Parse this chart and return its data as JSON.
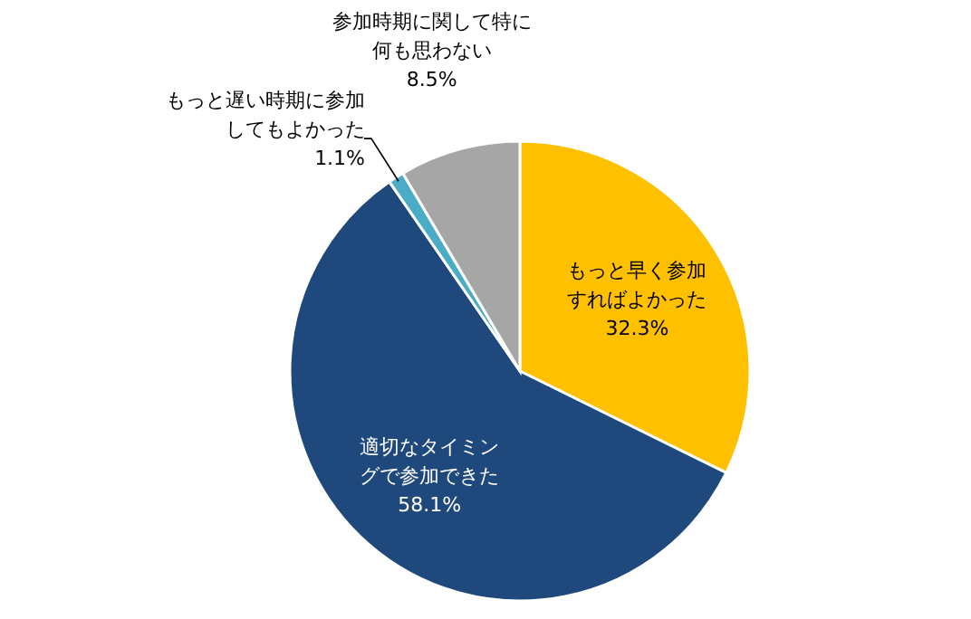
{
  "chart_data": {
    "type": "pie",
    "categories": [
      "もっと早く参加すればよかった",
      "適切なタイミングで参加できた",
      "もっと遅い時期に参加してもよかった",
      "参加時期に関して特に何も思わない"
    ],
    "values": [
      32.3,
      58.1,
      1.1,
      8.5
    ],
    "colors": [
      "#ffc000",
      "#1f497d",
      "#4bacc6",
      "#a6a6a6"
    ],
    "value_labels": [
      "32.3%",
      "58.1%",
      "1.1%",
      "8.5%"
    ]
  }
}
